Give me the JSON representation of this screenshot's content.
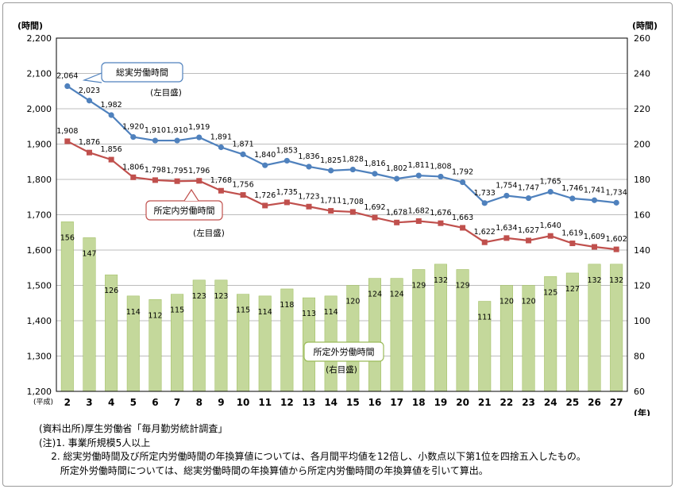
{
  "chart_data": {
    "type": "bar+line",
    "left_axis": {
      "unit_label": "(時間)",
      "ylim": [
        1200,
        2200
      ],
      "ticks": [
        "1,200",
        "1,300",
        "1,400",
        "1,500",
        "1,600",
        "1,700",
        "1,800",
        "1,900",
        "2,000",
        "2,100",
        "2,200"
      ]
    },
    "right_axis": {
      "unit_label": "(時間)",
      "ylim": [
        60,
        260
      ],
      "ticks": [
        "60",
        "80",
        "100",
        "120",
        "140",
        "160",
        "180",
        "200",
        "220",
        "240",
        "260"
      ]
    },
    "x_prefix": "(平成)",
    "x_unit": "(年)",
    "categories": [
      "2",
      "3",
      "4",
      "5",
      "6",
      "7",
      "8",
      "9",
      "10",
      "11",
      "12",
      "13",
      "14",
      "15",
      "16",
      "17",
      "18",
      "19",
      "20",
      "21",
      "22",
      "23",
      "24",
      "25",
      "26",
      "27"
    ],
    "series": [
      {
        "name": "総実労働時間",
        "axis_note": "(左目盛)",
        "type": "line",
        "color": "#4f81bd",
        "values": [
          2064,
          2023,
          1982,
          1920,
          1910,
          1910,
          1919,
          1891,
          1871,
          1840,
          1853,
          1836,
          1825,
          1828,
          1816,
          1802,
          1811,
          1808,
          1792,
          1733,
          1754,
          1747,
          1765,
          1746,
          1741,
          1734
        ],
        "labels": [
          "2,064",
          "2,023",
          "1,982",
          "1,920",
          "1,910",
          "1,910",
          "1,919",
          "1,891",
          "1,871",
          "1,840",
          "1,853",
          "1,836",
          "1,825",
          "1,828",
          "1,816",
          "1,802",
          "1,811",
          "1,808",
          "1,792",
          "1,733",
          "1,754",
          "1,747",
          "1,765",
          "1,746",
          "1,741",
          "1,734"
        ]
      },
      {
        "name": "所定内労働時間",
        "axis_note": "(左目盛)",
        "type": "line",
        "color": "#c0504d",
        "values": [
          1908,
          1876,
          1856,
          1806,
          1798,
          1795,
          1796,
          1768,
          1756,
          1726,
          1735,
          1723,
          1711,
          1708,
          1692,
          1678,
          1682,
          1676,
          1663,
          1622,
          1634,
          1627,
          1640,
          1619,
          1609,
          1602
        ],
        "labels": [
          "1,908",
          "1,876",
          "1,856",
          "1,806",
          "1,798",
          "1,795",
          "1,796",
          "1,768",
          "1,756",
          "1,726",
          "1,735",
          "1,723",
          "1,711",
          "1,708",
          "1,692",
          "1,678",
          "1,682",
          "1,676",
          "1,663",
          "1,622",
          "1,634",
          "1,627",
          "1,640",
          "1,619",
          "1,609",
          "1,602"
        ]
      },
      {
        "name": "所定外労働時間",
        "axis_note": "(右目盛)",
        "type": "bar",
        "color": "#c4d89b",
        "values": [
          156,
          147,
          126,
          114,
          112,
          115,
          123,
          123,
          115,
          114,
          118,
          113,
          114,
          120,
          124,
          124,
          129,
          132,
          129,
          111,
          120,
          120,
          125,
          127,
          132,
          132
        ],
        "labels": [
          "156",
          "147",
          "126",
          "114",
          "112",
          "115",
          "123",
          "123",
          "115",
          "114",
          "118",
          "113",
          "114",
          "120",
          "124",
          "124",
          "129",
          "132",
          "129",
          "111",
          "120",
          "120",
          "125",
          "127",
          "132",
          "132"
        ]
      }
    ]
  },
  "notes": [
    "(資料出所)厚生労働省「毎月勤労統計調査」",
    "(注)1. 事業所規模5人以上",
    "    2. 総実労働時間及び所定内労働時間の年換算値については、各月間平均値を12倍し、小数点以下第1位を四捨五入したもの。",
    "       所定外労働時間については、総実労働時間の年換算値から所定内労働時間の年換算値を引いて算出。"
  ]
}
